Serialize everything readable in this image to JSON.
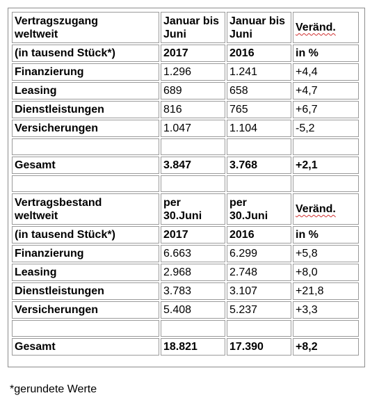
{
  "section1": {
    "header": {
      "label_line1": "Vertragszugang",
      "label_line2": "weltweit",
      "col2_line1": "Januar bis",
      "col2_line2": "Juni",
      "col3_line1": "Januar bis",
      "col3_line2": "Juni",
      "col4": "Veränd."
    },
    "unit_row": {
      "label": "(in tausend Stück*)",
      "col2": "2017",
      "col3": "2016",
      "col4": "in %"
    },
    "rows": [
      {
        "label": "Finanzierung",
        "v2017": "1.296",
        "v2016": "1.241",
        "change": "+4,4"
      },
      {
        "label": "Leasing",
        "v2017": "689",
        "v2016": "658",
        "change": "+4,7"
      },
      {
        "label": "Dienstleistungen",
        "v2017": "816",
        "v2016": "765",
        "change": "+6,7"
      },
      {
        "label": "Versicherungen",
        "v2017": "1.047",
        "v2016": "1.104",
        "change": "-5,2"
      }
    ],
    "total": {
      "label": "Gesamt",
      "v2017": "3.847",
      "v2016": "3.768",
      "change": "+2,1"
    }
  },
  "section2": {
    "header": {
      "label_line1": "Vertragsbestand",
      "label_line2": "weltweit",
      "col2_line1": "per",
      "col2_line2": "30.Juni",
      "col3_line1": "per",
      "col3_line2": "30.Juni",
      "col4": "Veränd."
    },
    "unit_row": {
      "label": "(in tausend Stück*)",
      "col2": "2017",
      "col3": "2016",
      "col4": "in %"
    },
    "rows": [
      {
        "label": "Finanzierung",
        "v2017": "6.663",
        "v2016": "6.299",
        "change": "+5,8"
      },
      {
        "label": "Leasing",
        "v2017": "2.968",
        "v2016": "2.748",
        "change": "+8,0"
      },
      {
        "label": "Dienstleistungen",
        "v2017": "3.783",
        "v2016": "3.107",
        "change": "+21,8"
      },
      {
        "label": "Versicherungen",
        "v2017": "5.408",
        "v2016": "5.237",
        "change": "+3,3"
      }
    ],
    "total": {
      "label": "Gesamt",
      "v2017": "18.821",
      "v2016": "17.390",
      "change": "+8,2"
    }
  },
  "footnote": "*gerundete Werte",
  "colors": {
    "cell_border": "#9a9a9a",
    "frame_border": "#8c8c8c",
    "spellcheck_underline": "#d03030"
  }
}
